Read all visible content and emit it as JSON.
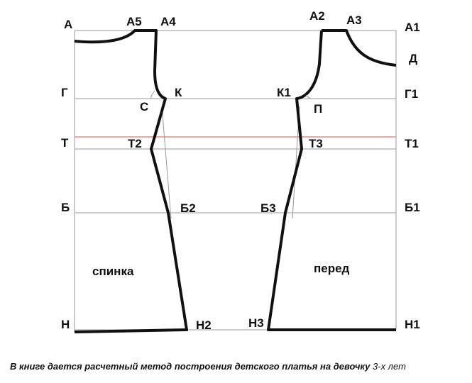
{
  "labels": {
    "A": "А",
    "A5": "А5",
    "A4": "А4",
    "A2": "А2",
    "A3": "А3",
    "A1": "А1",
    "D": "Д",
    "G": "Г",
    "K": "К",
    "S": "С",
    "K1": "К1",
    "P": "П",
    "G1": "Г1",
    "T": "Т",
    "T2": "Т2",
    "T3": "Т3",
    "T1": "Т1",
    "B": "Б",
    "B2": "Б2",
    "B3": "Б3",
    "B1": "Б1",
    "back": "спинка",
    "front": "перед",
    "N": "Н",
    "N2": "Н2",
    "N3": "Н3",
    "N1": "Н1"
  },
  "caption": {
    "main": "В книге дается расчетный метод построения детского платья на девочку",
    "rest": "3-х лет"
  }
}
